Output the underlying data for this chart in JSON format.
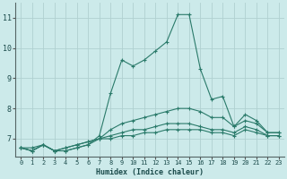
{
  "xlabel": "Humidex (Indice chaleur)",
  "ylabel": "",
  "bg_color": "#cceaea",
  "grid_color": "#b0d0d0",
  "line_color": "#2a7a6a",
  "xlim": [
    -0.5,
    23.5
  ],
  "ylim": [
    6.4,
    11.5
  ],
  "yticks": [
    7,
    8,
    9,
    10,
    11
  ],
  "xticks": [
    0,
    1,
    2,
    3,
    4,
    5,
    6,
    7,
    8,
    9,
    10,
    11,
    12,
    13,
    14,
    15,
    16,
    17,
    18,
    19,
    20,
    21,
    22,
    23
  ],
  "series": [
    {
      "x": [
        0,
        1,
        2,
        3,
        4,
        5,
        6,
        7,
        8,
        9,
        10,
        11,
        12,
        13,
        14,
        15,
        16,
        17,
        18,
        19,
        20,
        21,
        22,
        23
      ],
      "y": [
        6.7,
        6.6,
        6.8,
        6.6,
        6.6,
        6.7,
        6.8,
        7.1,
        8.5,
        9.6,
        9.4,
        9.6,
        9.9,
        10.2,
        11.1,
        11.1,
        9.3,
        8.3,
        8.4,
        7.4,
        7.8,
        7.6,
        7.2,
        7.2
      ]
    },
    {
      "x": [
        0,
        1,
        2,
        3,
        4,
        5,
        6,
        7,
        8,
        9,
        10,
        11,
        12,
        13,
        14,
        15,
        16,
        17,
        18,
        19,
        20,
        21,
        22,
        23
      ],
      "y": [
        6.7,
        6.6,
        6.8,
        6.6,
        6.6,
        6.7,
        6.8,
        7.0,
        7.3,
        7.5,
        7.6,
        7.7,
        7.8,
        7.9,
        8.0,
        8.0,
        7.9,
        7.7,
        7.7,
        7.4,
        7.6,
        7.5,
        7.2,
        7.2
      ]
    },
    {
      "x": [
        0,
        1,
        2,
        3,
        4,
        5,
        6,
        7,
        8,
        9,
        10,
        11,
        12,
        13,
        14,
        15,
        16,
        17,
        18,
        19,
        20,
        21,
        22,
        23
      ],
      "y": [
        6.7,
        6.6,
        6.8,
        6.6,
        6.7,
        6.8,
        6.9,
        7.0,
        7.1,
        7.2,
        7.3,
        7.3,
        7.4,
        7.5,
        7.5,
        7.5,
        7.4,
        7.3,
        7.3,
        7.2,
        7.4,
        7.3,
        7.1,
        7.1
      ]
    },
    {
      "x": [
        0,
        1,
        2,
        3,
        4,
        5,
        6,
        7,
        8,
        9,
        10,
        11,
        12,
        13,
        14,
        15,
        16,
        17,
        18,
        19,
        20,
        21,
        22,
        23
      ],
      "y": [
        6.7,
        6.7,
        6.8,
        6.6,
        6.7,
        6.8,
        6.9,
        7.0,
        7.0,
        7.1,
        7.1,
        7.2,
        7.2,
        7.3,
        7.3,
        7.3,
        7.3,
        7.2,
        7.2,
        7.1,
        7.3,
        7.2,
        7.1,
        7.1
      ]
    }
  ]
}
